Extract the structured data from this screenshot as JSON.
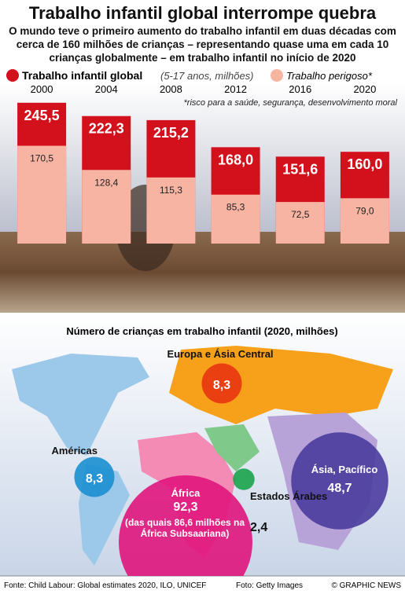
{
  "title": "Trabalho infantil global interrompe quebra",
  "subtitle": "O mundo teve o primeiro aumento do trabalho infantil em duas décadas com cerca de 160 milhões de crianças – representando quase uma em cada 10 crianças globalmente – em trabalho infantil no início de 2020",
  "footer": {
    "source": "Fonte: Child Labour: Global estimates 2020, ILO, UNICEF",
    "photo": "Foto: Getty Images",
    "credit": "© GRAPHIC NEWS"
  },
  "chart_data": [
    {
      "type": "bar",
      "subtitle": "(5-17 anos, milhões)",
      "note": "*risco para a saúde, segurança, desenvolvimento moral",
      "categories": [
        "2000",
        "2004",
        "2008",
        "2012",
        "2016",
        "2020"
      ],
      "series": [
        {
          "name": "Trabalho infantil global",
          "color": "#d3111c",
          "values": [
            245.5,
            222.3,
            215.2,
            168.0,
            151.6,
            160.0
          ],
          "value_labels": [
            "245,5",
            "222,3",
            "215,2",
            "168,0",
            "151,6",
            "160,0"
          ]
        },
        {
          "name": "Trabalho perigoso*",
          "color": "#f7b4a2",
          "values": [
            170.5,
            128.4,
            115.3,
            85.3,
            72.5,
            79.0
          ],
          "value_labels": [
            "170,5",
            "128,4",
            "115,3",
            "85,3",
            "72,5",
            "79,0"
          ]
        }
      ]
    },
    {
      "type": "bubble",
      "title": "Número de crianças em trabalho infantil (2020, milhões)",
      "categories": [
        "Europa e Ásia Central",
        "Américas",
        "África",
        "Estados Árabes",
        "Ásia, Pacífico"
      ],
      "values": [
        8.3,
        8.3,
        92.3,
        2.4,
        48.7
      ],
      "value_labels": [
        "8,3",
        "8,3",
        "92,3",
        "2,4",
        "48,7"
      ],
      "colors": [
        "#e8340f",
        "#1b8fd2",
        "#e0157d",
        "#1aa34a",
        "#4b3c9e"
      ],
      "annotation": "(das quais 86,6 milhões na África Subsaariana)"
    }
  ]
}
